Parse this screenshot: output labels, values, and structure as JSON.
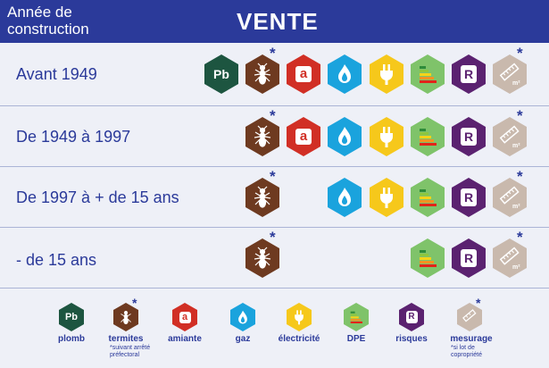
{
  "colors": {
    "header_bg": "#2b3a9a",
    "text": "#2b3a9a",
    "plomb": "#1d5540",
    "termites": "#6e3a20",
    "amiante": "#d12f25",
    "gaz": "#1aa3dd",
    "electricite": "#f6c81b",
    "dpe": "#7fc36a",
    "risques": "#5b2270",
    "mesurage": "#c9b9ad"
  },
  "header": {
    "left_line1": "Année de",
    "left_line2": "construction",
    "title": "VENTE"
  },
  "rows": [
    {
      "label": "Avant 1949",
      "diagnostics": [
        "plomb",
        "termites",
        "amiante",
        "gaz",
        "electricite",
        "dpe",
        "risques",
        "mesurage"
      ]
    },
    {
      "label": "De 1949 à 1997",
      "diagnostics": [
        "termites",
        "amiante",
        "gaz",
        "electricite",
        "dpe",
        "risques",
        "mesurage"
      ]
    },
    {
      "label": "De 1997 à + de 15 ans",
      "diagnostics": [
        "termites",
        "gaz",
        "electricite",
        "dpe",
        "risques",
        "mesurage"
      ]
    },
    {
      "label": "- de 15 ans",
      "diagnostics": [
        "termites",
        "dpe",
        "risques",
        "mesurage"
      ]
    }
  ],
  "icons": {
    "plomb": {
      "text": "Pb",
      "icon": "lead-icon"
    },
    "termites": {
      "icon": "termite-icon",
      "star": "*"
    },
    "amiante": {
      "text": "a",
      "icon": "asbestos-icon"
    },
    "gaz": {
      "icon": "flame-icon"
    },
    "electricite": {
      "icon": "plug-icon"
    },
    "dpe": {
      "icon": "energy-label-icon"
    },
    "risques": {
      "text": "R",
      "icon": "risk-icon"
    },
    "mesurage": {
      "icon": "ruler-icon",
      "star": "*",
      "unit": "m²"
    }
  },
  "legend": {
    "plomb": "plomb",
    "termites": "termites",
    "termites_note_line1": "*suivant arrêté",
    "termites_note_line2": "préfectoral",
    "amiante": "amiante",
    "gaz": "gaz",
    "electricite": "électricité",
    "dpe": "DPE",
    "risques": "risques",
    "mesurage": "mesurage",
    "mesurage_note_line1": "*si lot de",
    "mesurage_note_line2": "copropriété"
  }
}
